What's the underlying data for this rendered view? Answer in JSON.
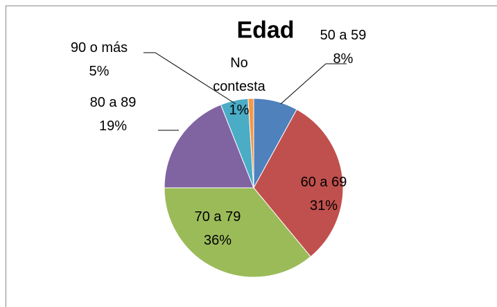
{
  "chart_data": {
    "type": "pie",
    "title": "Edad",
    "categories": [
      "50 a 59",
      "60 a 69",
      "70 a 79",
      "80 a 89",
      "90 o más",
      "No contesta"
    ],
    "values": [
      8,
      31,
      36,
      19,
      5,
      1
    ],
    "value_labels": [
      "8%",
      "31%",
      "36%",
      "19%",
      "5%",
      "1%"
    ],
    "colors": [
      "#4f81bd",
      "#c0504d",
      "#9bbb59",
      "#8064a2",
      "#4bacc6",
      "#f79646"
    ]
  }
}
